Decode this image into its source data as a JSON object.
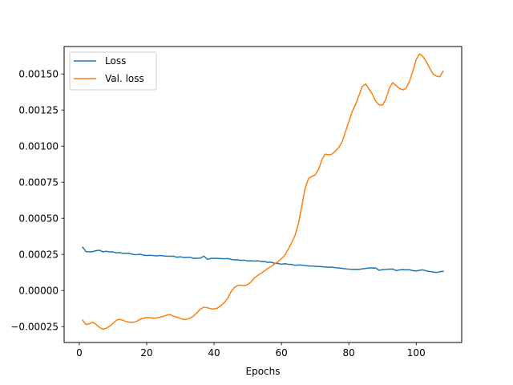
{
  "chart_data": {
    "type": "line",
    "title": "",
    "xlabel": "Epochs",
    "ylabel": "",
    "xlim": [
      -4.5,
      113.5
    ],
    "ylim": [
      -0.00036,
      0.00169
    ],
    "x_ticks": [
      0,
      20,
      40,
      60,
      80,
      100
    ],
    "x_tick_labels": [
      "0",
      "20",
      "40",
      "60",
      "80",
      "100"
    ],
    "y_ticks": [
      -0.00025,
      0,
      0.00025,
      0.0005,
      0.00075,
      0.001,
      0.00125,
      0.0015
    ],
    "y_tick_labels": [
      "−0.00025",
      "0.00000",
      "0.00025",
      "0.00050",
      "0.00075",
      "0.00100",
      "0.00125",
      "0.00150"
    ],
    "grid": false,
    "legend": "upper-left",
    "x": [
      1,
      2,
      3,
      4,
      5,
      6,
      7,
      8,
      9,
      10,
      11,
      12,
      13,
      14,
      15,
      16,
      17,
      18,
      19,
      20,
      21,
      22,
      23,
      24,
      25,
      26,
      27,
      28,
      29,
      30,
      31,
      32,
      33,
      34,
      35,
      36,
      37,
      38,
      39,
      40,
      41,
      42,
      43,
      44,
      45,
      46,
      47,
      48,
      49,
      50,
      51,
      52,
      53,
      54,
      55,
      56,
      57,
      58,
      59,
      60,
      61,
      62,
      63,
      64,
      65,
      66,
      67,
      68,
      69,
      70,
      71,
      72,
      73,
      74,
      75,
      76,
      77,
      78,
      79,
      80,
      81,
      82,
      83,
      84,
      85,
      86,
      87,
      88,
      89,
      90,
      91,
      92,
      93,
      94,
      95,
      96,
      97,
      98,
      99,
      100,
      101,
      102,
      103,
      104,
      105,
      106,
      107,
      108
    ],
    "series": [
      {
        "name": "Loss",
        "color": "#1f77b4",
        "values": [
          0.0003,
          0.00027,
          0.000268,
          0.00027,
          0.000276,
          0.000279,
          0.000268,
          0.000272,
          0.000268,
          0.000268,
          0.000261,
          0.000263,
          0.000257,
          0.000258,
          0.000256,
          0.00025,
          0.000248,
          0.000252,
          0.000245,
          0.000243,
          0.000244,
          0.000242,
          0.00024,
          0.000243,
          0.00024,
          0.000238,
          0.000237,
          0.000238,
          0.00023,
          0.000234,
          0.000228,
          0.00023,
          0.00023,
          0.000222,
          0.000224,
          0.000225,
          0.000238,
          0.000216,
          0.000222,
          0.000223,
          0.000222,
          0.000221,
          0.00022,
          0.000221,
          0.000216,
          0.000212,
          0.000213,
          0.000209,
          0.00021,
          0.000205,
          0.000206,
          0.000204,
          0.000206,
          0.000201,
          0.000201,
          0.000195,
          0.000196,
          0.000188,
          0.000188,
          0.000182,
          0.000186,
          0.000182,
          0.000181,
          0.000175,
          0.000177,
          0.000176,
          0.000173,
          0.00017,
          0.00017,
          0.000168,
          0.000167,
          0.000165,
          0.000163,
          0.000161,
          0.000162,
          0.000158,
          0.000156,
          0.000154,
          0.00015,
          0.000148,
          0.000146,
          0.000147,
          0.000146,
          0.00015,
          0.000153,
          0.000156,
          0.000157,
          0.000156,
          0.00014,
          0.000145,
          0.000146,
          0.000148,
          0.000149,
          0.000138,
          0.000143,
          0.000145,
          0.000143,
          0.000144,
          0.000138,
          0.000135,
          0.00014,
          0.000143,
          0.000136,
          0.000132,
          0.000128,
          0.000125,
          0.00013,
          0.000133
        ]
      },
      {
        "name": "Val. loss",
        "color": "#ff7f0e",
        "values": [
          -0.000205,
          -0.000236,
          -0.00023,
          -0.00022,
          -0.000235,
          -0.000255,
          -0.000268,
          -0.000262,
          -0.000246,
          -0.000228,
          -0.000205,
          -0.0002,
          -0.000206,
          -0.000215,
          -0.00022,
          -0.00022,
          -0.000214,
          -0.0002,
          -0.000192,
          -0.000187,
          -0.000188,
          -0.000192,
          -0.00019,
          -0.000185,
          -0.000178,
          -0.00017,
          -0.000168,
          -0.000178,
          -0.000185,
          -0.000193,
          -0.0002,
          -0.000198,
          -0.00019,
          -0.000175,
          -0.000152,
          -0.000128,
          -0.000115,
          -0.000119,
          -0.000126,
          -0.000128,
          -0.000122,
          -0.000105,
          -8.5e-05,
          -5.5e-05,
          -1e-05,
          2e-05,
          3.5e-05,
          3.7e-05,
          3.3e-05,
          4.2e-05,
          6e-05,
          8.8e-05,
          0.000105,
          0.00012,
          0.000136,
          0.000153,
          0.000168,
          0.000185,
          0.0002,
          0.00022,
          0.000245,
          0.000285,
          0.00033,
          0.00038,
          0.00046,
          0.00058,
          0.000705,
          0.000775,
          0.00079,
          0.0008,
          0.00084,
          0.000905,
          0.000945,
          0.00094,
          0.000945,
          0.000965,
          0.00099,
          0.00103,
          0.0011,
          0.00117,
          0.00124,
          0.00129,
          0.00135,
          0.001415,
          0.00143,
          0.001395,
          0.00136,
          0.00131,
          0.001285,
          0.001285,
          0.001325,
          0.0014,
          0.00144,
          0.00142,
          0.0014,
          0.00139,
          0.0014,
          0.00145,
          0.00152,
          0.0016,
          0.00164,
          0.00162,
          0.001585,
          0.00154,
          0.0015,
          0.001485,
          0.00148,
          0.00152
        ]
      }
    ]
  }
}
